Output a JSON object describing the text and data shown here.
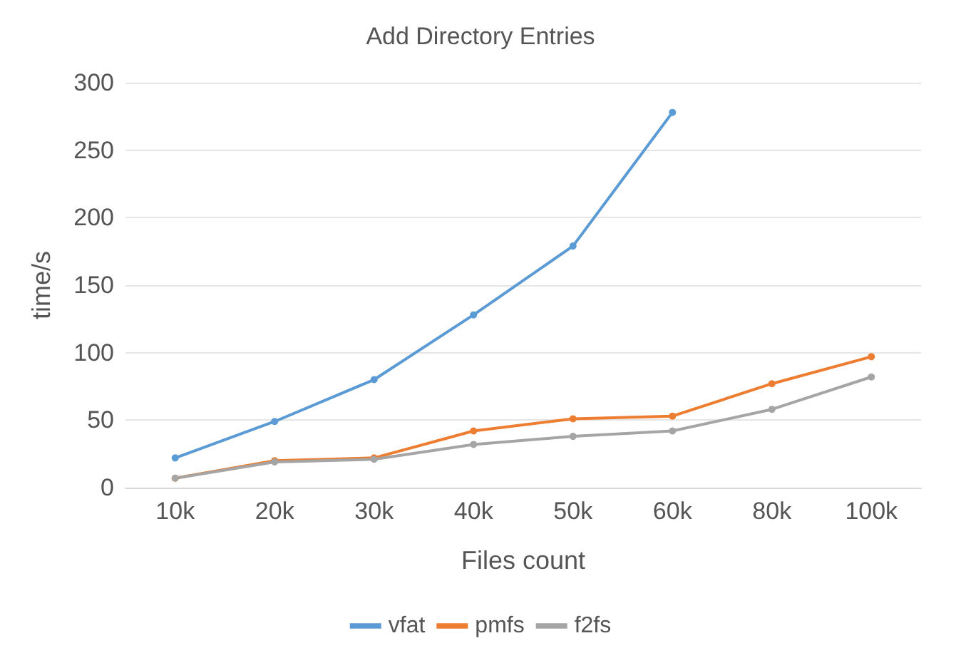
{
  "chart_data": {
    "type": "line",
    "title": "Add Directory Entries",
    "xlabel": "Files count",
    "ylabel": "time/s",
    "categories": [
      "10k",
      "20k",
      "30k",
      "40k",
      "50k",
      "60k",
      "80k",
      "100k"
    ],
    "series": [
      {
        "name": "vfat",
        "color": "#5b9bd5",
        "values": [
          22,
          49,
          80,
          128,
          179,
          278,
          null,
          null
        ]
      },
      {
        "name": "pmfs",
        "color": "#ed7d31",
        "values": [
          7,
          20,
          22,
          42,
          51,
          53,
          77,
          97
        ]
      },
      {
        "name": "f2fs",
        "color": "#a5a5a5",
        "values": [
          7,
          19,
          21,
          32,
          38,
          42,
          58,
          82
        ]
      }
    ],
    "ylim": [
      0,
      300
    ],
    "yticks": [
      0,
      50,
      100,
      150,
      200,
      250,
      300
    ],
    "grid": "y",
    "legend": "bottom",
    "marker": "circle",
    "line_style": "solid"
  }
}
